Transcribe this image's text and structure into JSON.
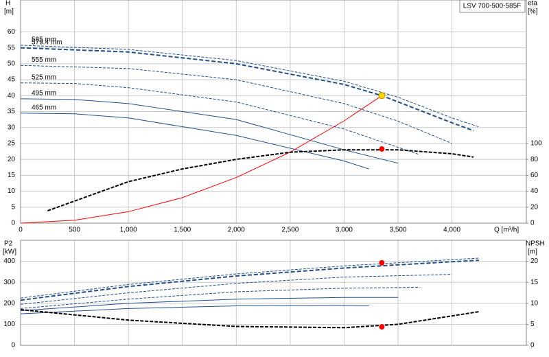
{
  "chart_data": [
    {
      "type": "line",
      "title": "LSV 700-500-585F",
      "xlabel": "Q [m³/h]",
      "ylabel": "H",
      "yunit": "[m]",
      "y2label": "eta",
      "y2unit": "[%]",
      "xlim": [
        0,
        4690
      ],
      "ylim": [
        0,
        70
      ],
      "y2lim": [
        0,
        280
      ],
      "grid": true,
      "xticks": [
        0,
        500,
        {
          "value": 1000,
          "label": "1,000"
        },
        {
          "value": 1500,
          "label": "1,500"
        },
        {
          "value": 2000,
          "label": "2,000"
        },
        {
          "value": 2500,
          "label": "2,500"
        },
        {
          "value": 3000,
          "label": "3,000"
        },
        {
          "value": 3500,
          "label": "3,500"
        },
        {
          "value": 4000,
          "label": "4,000"
        }
      ],
      "yticks": [
        0,
        5,
        10,
        15,
        20,
        25,
        30,
        35,
        40,
        45,
        50,
        55,
        60
      ],
      "y2ticks": [
        0,
        20,
        40,
        60,
        80,
        100
      ],
      "series": [
        {
          "name": "585 mm",
          "color": "#1f4e8c",
          "dash": "4 2",
          "x": [
            0,
            1000,
            2000,
            3000,
            3500,
            4000,
            4250
          ],
          "values": [
            55.8,
            54.5,
            51,
            44.5,
            39.5,
            33,
            30.2
          ]
        },
        {
          "name": "579.4 mm",
          "color": "#1f4e8c",
          "dash": "6 3",
          "width": 2,
          "x": [
            0,
            1000,
            2000,
            3000,
            3350,
            4000,
            4200
          ],
          "values": [
            55,
            53.7,
            50,
            43.5,
            40,
            31.5,
            29
          ]
        },
        {
          "name": "555 mm",
          "color": "#1f4e8c",
          "dash": "4 2",
          "x": [
            0,
            1000,
            2000,
            3000,
            3500,
            4000
          ],
          "values": [
            49.5,
            48.5,
            45,
            37.5,
            32,
            25
          ]
        },
        {
          "name": "525 mm",
          "color": "#1f4e8c",
          "dash": "4 2",
          "x": [
            0,
            500,
            1000,
            2000,
            3000,
            3700
          ],
          "values": [
            44,
            43.8,
            42.5,
            38,
            29.5,
            21.5
          ]
        },
        {
          "name": "495 mm",
          "color": "#1f4e8c",
          "x": [
            0,
            500,
            1000,
            2000,
            3000,
            3500
          ],
          "values": [
            39,
            38.8,
            37.5,
            32.5,
            23,
            18.8
          ]
        },
        {
          "name": "465 mm",
          "color": "#1f4e8c",
          "x": [
            0,
            500,
            1000,
            2000,
            3000,
            3230
          ],
          "values": [
            34.5,
            34.3,
            33,
            27.5,
            19.5,
            17
          ]
        },
        {
          "color": "#ff0000",
          "x": [
            0,
            500,
            1000,
            1500,
            2000,
            2500,
            3000,
            3350
          ],
          "values": [
            0,
            0.9,
            3.6,
            8,
            14.3,
            22.3,
            32.1,
            40
          ]
        },
        {
          "color": "#000000",
          "dash": "5 2",
          "width": 2,
          "axis": "y2",
          "x": [
            250,
            1000,
            1500,
            2000,
            2500,
            3000,
            3500,
            4000,
            4200
          ],
          "values": [
            15.5,
            52,
            68,
            80,
            89,
            92,
            92,
            87,
            83
          ]
        },
        {
          "color": "#ffd700",
          "marker": true,
          "x": [
            3350
          ],
          "values": [
            40
          ]
        },
        {
          "color": "#ff0000",
          "marker": true,
          "axis": "y2",
          "x": [
            3350
          ],
          "values": [
            93
          ]
        }
      ]
    },
    {
      "type": "line",
      "ylabel": "P2",
      "yunit": "[kW]",
      "y2label": "NPSH",
      "y2unit": "[m]",
      "xlim": [
        0,
        4690
      ],
      "ylim": [
        0,
        500
      ],
      "y2lim": [
        0,
        25
      ],
      "grid": true,
      "yticks": [
        0,
        100,
        200,
        300,
        400
      ],
      "y2ticks": [
        0,
        5,
        10,
        15,
        20
      ],
      "series": [
        {
          "color": "#1f4e8c",
          "dash": "4 2",
          "x": [
            0,
            1000,
            2000,
            3000,
            4000,
            4250
          ],
          "values": [
            225,
            290,
            340,
            378,
            408,
            415
          ]
        },
        {
          "color": "#1f4e8c",
          "dash": "6 3",
          "width": 2,
          "x": [
            0,
            1000,
            2000,
            3000,
            4000,
            4250
          ],
          "values": [
            215,
            280,
            330,
            368,
            398,
            405
          ]
        },
        {
          "color": "#1f4e8c",
          "dash": "4 2",
          "x": [
            0,
            1000,
            2000,
            3000,
            4000
          ],
          "values": [
            195,
            250,
            295,
            325,
            338
          ]
        },
        {
          "color": "#1f4e8c",
          "dash": "4 2",
          "x": [
            0,
            1000,
            2000,
            3000,
            3700
          ],
          "values": [
            175,
            220,
            255,
            272,
            276
          ]
        },
        {
          "color": "#1f4e8c",
          "x": [
            0,
            1000,
            2000,
            3000,
            3500
          ],
          "values": [
            165,
            200,
            220,
            228,
            228
          ]
        },
        {
          "color": "#1f4e8c",
          "x": [
            0,
            1000,
            2000,
            3000,
            3230
          ],
          "values": [
            150,
            175,
            188,
            190,
            188
          ]
        },
        {
          "color": "#000000",
          "dash": "5 2",
          "width": 2,
          "axis": "y2",
          "x": [
            0,
            1000,
            2000,
            3000,
            3500,
            4250
          ],
          "values": [
            8.5,
            6,
            4.5,
            4.2,
            5,
            8
          ]
        },
        {
          "color": "#ff0000",
          "marker": true,
          "x": [
            3350
          ],
          "values": [
            393
          ]
        },
        {
          "color": "#ff0000",
          "marker": true,
          "axis": "y2",
          "x": [
            3350
          ],
          "values": [
            4.4
          ]
        }
      ]
    }
  ]
}
